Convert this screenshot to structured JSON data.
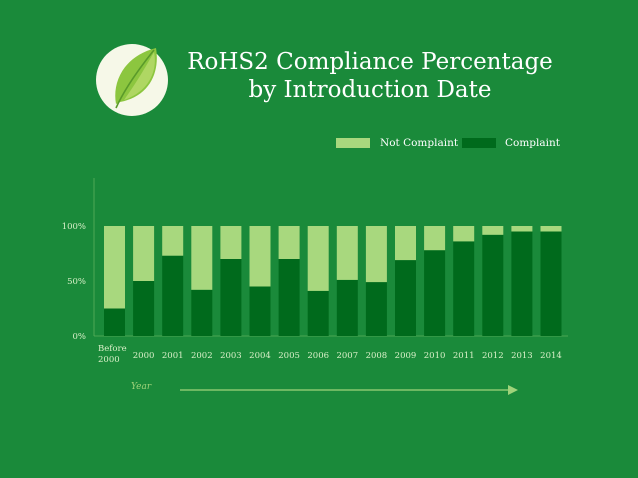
{
  "title": {
    "line1": "RoHS2 Compliance Percentage",
    "line2": "by Introduction Date"
  },
  "colors": {
    "background": "#1a8a3a",
    "not_compliant": "#a8d87e",
    "compliant": "#006a1c",
    "axis_text": "#d9f0c8"
  },
  "icons": {
    "logo": "leaf-icon",
    "arrow": "arrow-right-icon"
  },
  "xaxis_note": "Year",
  "chart_data": {
    "type": "bar",
    "stacked": true,
    "categories": [
      "Before 2000",
      "2000",
      "2001",
      "2002",
      "2003",
      "2004",
      "2005",
      "2006",
      "2007",
      "2008",
      "2009",
      "2010",
      "2011",
      "2012",
      "2013",
      "2014"
    ],
    "series": [
      {
        "name": "Complaint",
        "values": [
          25,
          50,
          73,
          42,
          70,
          45,
          70,
          41,
          51,
          49,
          69,
          78,
          86,
          92,
          95,
          95
        ]
      },
      {
        "name": "Not Complaint",
        "values": [
          75,
          50,
          27,
          58,
          30,
          55,
          30,
          59,
          49,
          51,
          31,
          22,
          14,
          8,
          5,
          5
        ]
      }
    ],
    "yticks": [
      "0%",
      "50%",
      "100%"
    ],
    "ylim": [
      0,
      100
    ],
    "legend_position": "top-right"
  }
}
